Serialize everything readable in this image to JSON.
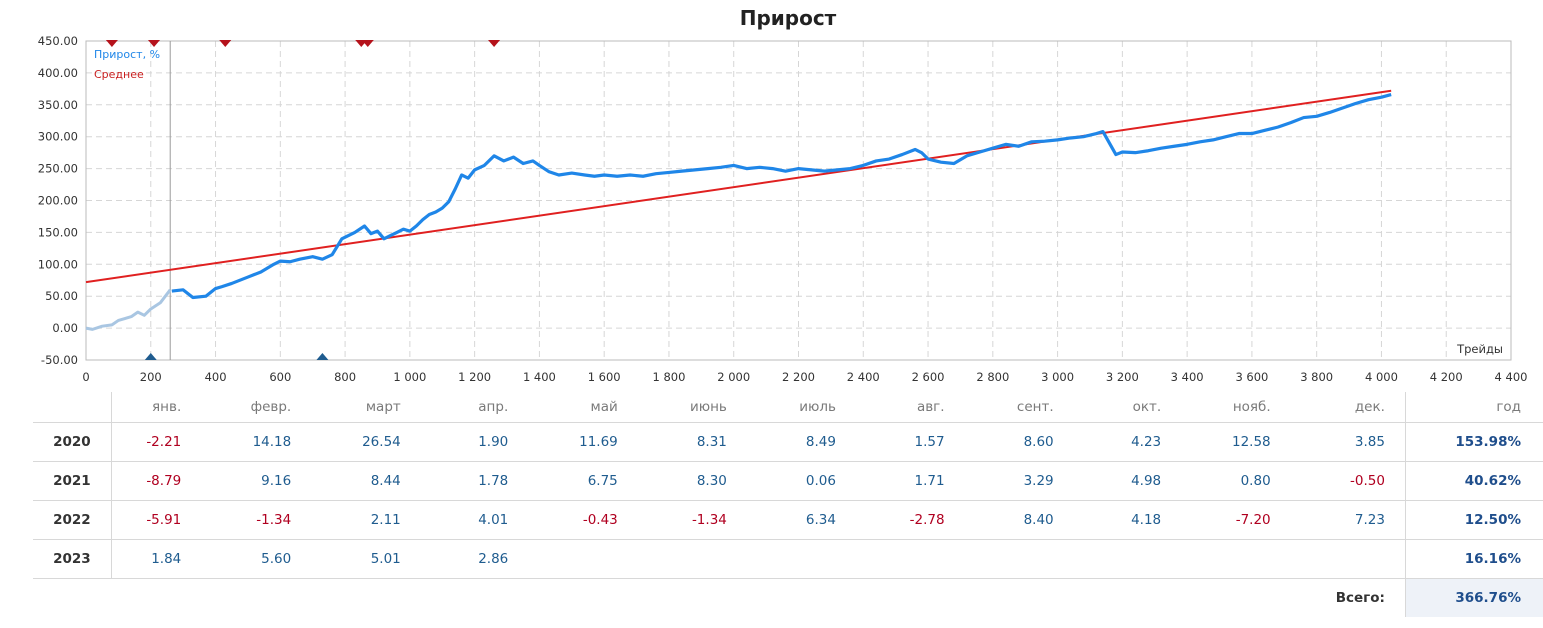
{
  "chart_data": {
    "type": "line",
    "title": "Прирост",
    "xlabel": "Трейды",
    "xlim": [
      0,
      4400
    ],
    "ylim": [
      -50,
      450
    ],
    "x_ticks": [
      0,
      200,
      400,
      600,
      800,
      1000,
      1200,
      1400,
      1600,
      1800,
      2000,
      2200,
      2400,
      2600,
      2800,
      3000,
      3200,
      3400,
      3600,
      3800,
      4000,
      4200,
      4400
    ],
    "x_tick_labels": [
      "0",
      "200",
      "400",
      "600",
      "800",
      "1 000",
      "1 200",
      "1 400",
      "1 600",
      "1 800",
      "2 000",
      "2 200",
      "2 400",
      "2 600",
      "2 800",
      "3 000",
      "3 200",
      "3 400",
      "3 600",
      "3 800",
      "4 000",
      "4 200",
      "4 400"
    ],
    "y_ticks": [
      -50,
      0,
      50,
      100,
      150,
      200,
      250,
      300,
      350,
      400,
      450
    ],
    "y_tick_labels": [
      "-50.00",
      "0.00",
      "50.00",
      "100.00",
      "150.00",
      "200.00",
      "250.00",
      "300.00",
      "350.00",
      "400.00",
      "450.00"
    ],
    "grid": true,
    "legend_position": "top-left",
    "divider_x": 260,
    "series": [
      {
        "name": "Прирост, %",
        "color": "#1f86e8",
        "pre_color": "#a9c6e2",
        "points": [
          [
            0,
            0
          ],
          [
            20,
            -2
          ],
          [
            50,
            3
          ],
          [
            80,
            5
          ],
          [
            100,
            12
          ],
          [
            120,
            15
          ],
          [
            140,
            18
          ],
          [
            160,
            25
          ],
          [
            180,
            20
          ],
          [
            200,
            30
          ],
          [
            230,
            40
          ],
          [
            260,
            60
          ],
          [
            265,
            58
          ],
          [
            300,
            60
          ],
          [
            330,
            48
          ],
          [
            370,
            50
          ],
          [
            400,
            62
          ],
          [
            420,
            65
          ],
          [
            450,
            70
          ],
          [
            500,
            80
          ],
          [
            540,
            88
          ],
          [
            580,
            100
          ],
          [
            600,
            105
          ],
          [
            630,
            104
          ],
          [
            660,
            108
          ],
          [
            700,
            112
          ],
          [
            730,
            108
          ],
          [
            760,
            115
          ],
          [
            790,
            140
          ],
          [
            830,
            150
          ],
          [
            860,
            160
          ],
          [
            880,
            148
          ],
          [
            900,
            152
          ],
          [
            920,
            140
          ],
          [
            940,
            145
          ],
          [
            960,
            150
          ],
          [
            980,
            155
          ],
          [
            1000,
            152
          ],
          [
            1020,
            160
          ],
          [
            1040,
            170
          ],
          [
            1060,
            178
          ],
          [
            1080,
            182
          ],
          [
            1100,
            188
          ],
          [
            1120,
            198
          ],
          [
            1140,
            218
          ],
          [
            1160,
            240
          ],
          [
            1180,
            235
          ],
          [
            1200,
            248
          ],
          [
            1230,
            255
          ],
          [
            1260,
            270
          ],
          [
            1290,
            262
          ],
          [
            1320,
            268
          ],
          [
            1350,
            258
          ],
          [
            1380,
            262
          ],
          [
            1400,
            255
          ],
          [
            1430,
            245
          ],
          [
            1460,
            240
          ],
          [
            1500,
            243
          ],
          [
            1540,
            240
          ],
          [
            1570,
            238
          ],
          [
            1600,
            240
          ],
          [
            1640,
            238
          ],
          [
            1680,
            240
          ],
          [
            1720,
            238
          ],
          [
            1760,
            242
          ],
          [
            1800,
            244
          ],
          [
            1840,
            246
          ],
          [
            1880,
            248
          ],
          [
            1920,
            250
          ],
          [
            1960,
            252
          ],
          [
            2000,
            255
          ],
          [
            2040,
            250
          ],
          [
            2080,
            252
          ],
          [
            2120,
            250
          ],
          [
            2160,
            246
          ],
          [
            2200,
            250
          ],
          [
            2240,
            248
          ],
          [
            2280,
            246
          ],
          [
            2320,
            248
          ],
          [
            2360,
            250
          ],
          [
            2400,
            255
          ],
          [
            2440,
            262
          ],
          [
            2480,
            265
          ],
          [
            2520,
            272
          ],
          [
            2560,
            280
          ],
          [
            2580,
            275
          ],
          [
            2600,
            265
          ],
          [
            2640,
            260
          ],
          [
            2680,
            258
          ],
          [
            2720,
            270
          ],
          [
            2760,
            276
          ],
          [
            2800,
            282
          ],
          [
            2840,
            288
          ],
          [
            2880,
            285
          ],
          [
            2920,
            292
          ],
          [
            2960,
            293
          ],
          [
            3000,
            295
          ],
          [
            3040,
            298
          ],
          [
            3080,
            300
          ],
          [
            3120,
            305
          ],
          [
            3140,
            308
          ],
          [
            3160,
            290
          ],
          [
            3180,
            272
          ],
          [
            3200,
            276
          ],
          [
            3240,
            275
          ],
          [
            3280,
            278
          ],
          [
            3320,
            282
          ],
          [
            3360,
            285
          ],
          [
            3400,
            288
          ],
          [
            3440,
            292
          ],
          [
            3480,
            295
          ],
          [
            3520,
            300
          ],
          [
            3560,
            305
          ],
          [
            3600,
            305
          ],
          [
            3640,
            310
          ],
          [
            3680,
            315
          ],
          [
            3720,
            322
          ],
          [
            3760,
            330
          ],
          [
            3800,
            332
          ],
          [
            3840,
            338
          ],
          [
            3880,
            345
          ],
          [
            3920,
            352
          ],
          [
            3960,
            358
          ],
          [
            4000,
            362
          ],
          [
            4030,
            366
          ]
        ]
      },
      {
        "name": "Среднее",
        "color": "#e02020",
        "points": [
          [
            0,
            72
          ],
          [
            4030,
            372
          ]
        ]
      }
    ],
    "top_markers_x": [
      80,
      210,
      430,
      850,
      870,
      1260
    ],
    "bottom_markers_x": [
      200,
      730
    ]
  },
  "table": {
    "headers": [
      "янв.",
      "февр.",
      "март",
      "апр.",
      "май",
      "июнь",
      "июль",
      "авг.",
      "сент.",
      "окт.",
      "нояб.",
      "дек."
    ],
    "total_header": "год",
    "rows": [
      {
        "year": "2020",
        "values": [
          "-2.21",
          "14.18",
          "26.54",
          "1.90",
          "11.69",
          "8.31",
          "8.49",
          "1.57",
          "8.60",
          "4.23",
          "12.58",
          "3.85"
        ],
        "total": "153.98%"
      },
      {
        "year": "2021",
        "values": [
          "-8.79",
          "9.16",
          "8.44",
          "1.78",
          "6.75",
          "8.30",
          "0.06",
          "1.71",
          "3.29",
          "4.98",
          "0.80",
          "-0.50"
        ],
        "total": "40.62%"
      },
      {
        "year": "2022",
        "values": [
          "-5.91",
          "-1.34",
          "2.11",
          "4.01",
          "-0.43",
          "-1.34",
          "6.34",
          "-2.78",
          "8.40",
          "4.18",
          "-7.20",
          "7.23"
        ],
        "total": "12.50%"
      },
      {
        "year": "2023",
        "values": [
          "1.84",
          "5.60",
          "5.01",
          "2.86",
          "",
          "",
          "",
          "",
          "",
          "",
          "",
          ""
        ],
        "total": "16.16%"
      }
    ],
    "grand_label": "Всего:",
    "grand_total": "366.76%"
  }
}
